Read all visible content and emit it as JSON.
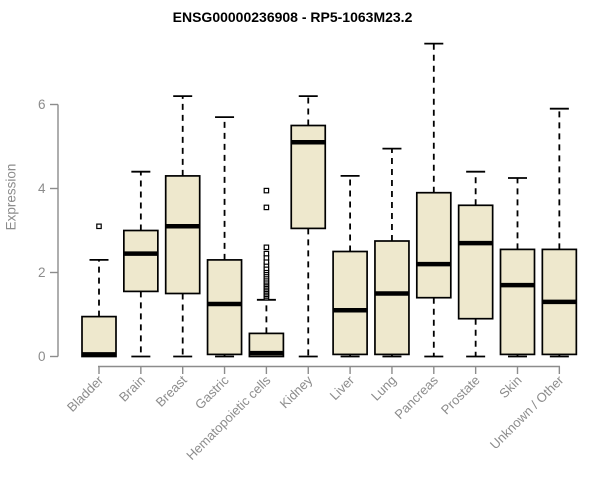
{
  "chart_data": {
    "type": "boxplot",
    "title": "ENSG00000236908 - RP5-1063M23.2",
    "xlabel": "",
    "ylabel": "Expression",
    "yticks": [
      0,
      2,
      4,
      6
    ],
    "ylim": [
      0,
      7.6
    ],
    "grid": false,
    "legend": null,
    "categories": [
      "Bladder",
      "Brain",
      "Breast",
      "Gastric",
      "Hematopoietic cells",
      "Kidney",
      "Liver",
      "Lung",
      "Pancreas",
      "Prostate",
      "Skin",
      "Unknown / Other"
    ],
    "boxes": [
      {
        "category": "Bladder",
        "whisker_low": 0,
        "q1": 0,
        "median": 0.05,
        "q3": 0.95,
        "whisker_high": 2.3,
        "outliers": [
          3.1
        ]
      },
      {
        "category": "Brain",
        "whisker_low": 0,
        "q1": 1.55,
        "median": 2.45,
        "q3": 3.0,
        "whisker_high": 4.4,
        "outliers": []
      },
      {
        "category": "Breast",
        "whisker_low": 0,
        "q1": 1.5,
        "median": 3.1,
        "q3": 4.3,
        "whisker_high": 6.2,
        "outliers": []
      },
      {
        "category": "Gastric",
        "whisker_low": 0,
        "q1": 0.05,
        "median": 1.25,
        "q3": 2.3,
        "whisker_high": 5.7,
        "outliers": []
      },
      {
        "category": "Hematopoietic cells",
        "whisker_low": 0,
        "q1": 0,
        "median": 0.08,
        "q3": 0.55,
        "whisker_high": 1.35,
        "outliers": [
          1.4,
          1.44,
          1.48,
          1.52,
          1.56,
          1.6,
          1.64,
          1.68,
          1.72,
          1.76,
          1.8,
          1.85,
          1.9,
          1.95,
          2.0,
          2.05,
          2.1,
          2.18,
          2.25,
          2.35,
          2.45,
          2.6,
          3.55,
          3.95
        ]
      },
      {
        "category": "Kidney",
        "whisker_low": 0,
        "q1": 3.05,
        "median": 5.1,
        "q3": 5.5,
        "whisker_high": 6.2,
        "outliers": []
      },
      {
        "category": "Liver",
        "whisker_low": 0,
        "q1": 0.05,
        "median": 1.1,
        "q3": 2.5,
        "whisker_high": 4.3,
        "outliers": []
      },
      {
        "category": "Lung",
        "whisker_low": 0,
        "q1": 0.05,
        "median": 1.5,
        "q3": 2.75,
        "whisker_high": 4.95,
        "outliers": []
      },
      {
        "category": "Pancreas",
        "whisker_low": 0,
        "q1": 1.4,
        "median": 2.2,
        "q3": 3.9,
        "whisker_high": 7.45,
        "outliers": []
      },
      {
        "category": "Prostate",
        "whisker_low": 0,
        "q1": 0.9,
        "median": 2.7,
        "q3": 3.6,
        "whisker_high": 4.4,
        "outliers": []
      },
      {
        "category": "Skin",
        "whisker_low": 0,
        "q1": 0.05,
        "median": 1.7,
        "q3": 2.55,
        "whisker_high": 4.25,
        "outliers": []
      },
      {
        "category": "Unknown / Other",
        "whisker_low": 0,
        "q1": 0.05,
        "median": 1.3,
        "q3": 2.55,
        "whisker_high": 5.9,
        "outliers": []
      }
    ]
  },
  "style": {
    "box_fill": "#EEE8CD",
    "box_stroke": "#000000",
    "median_color": "#000000",
    "whisker_color": "#000000",
    "outlier_stroke": "#000000",
    "outlier_fill": "#FFFFFF",
    "axis_color": "#8C8C8C",
    "tick_label_color": "#8C8C8C",
    "title_color": "#000000",
    "background": "#FFFFFF"
  }
}
